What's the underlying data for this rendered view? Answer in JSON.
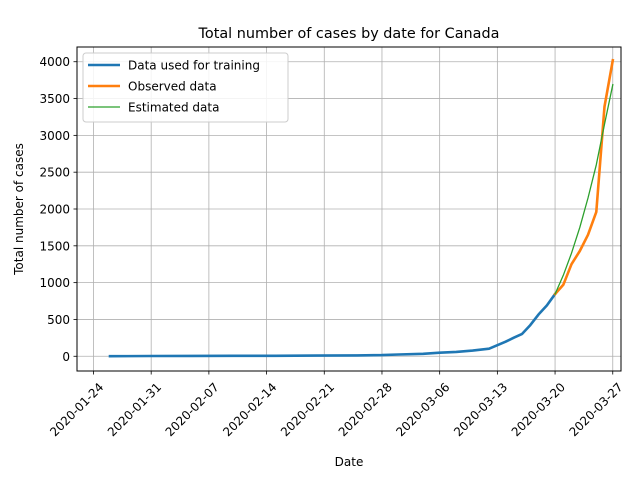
{
  "chart_data": {
    "type": "line",
    "title": "Total number of cases by date for Canada",
    "xlabel": "Date",
    "ylabel": "Total number of cases",
    "xlim": [
      "2020-01-22",
      "2020-03-28"
    ],
    "ylim": [
      -200,
      4200
    ],
    "x_ticks": [
      "2020-01-24",
      "2020-01-31",
      "2020-02-07",
      "2020-02-14",
      "2020-02-21",
      "2020-02-28",
      "2020-03-06",
      "2020-03-13",
      "2020-03-20",
      "2020-03-27"
    ],
    "y_ticks": [
      0,
      500,
      1000,
      1500,
      2000,
      2500,
      3000,
      3500,
      4000
    ],
    "grid": true,
    "legend_position": "upper-left",
    "series": [
      {
        "name": "Data used for training",
        "color": "#1f77b4",
        "x": [
          "2020-01-26",
          "2020-01-31",
          "2020-02-05",
          "2020-02-10",
          "2020-02-15",
          "2020-02-20",
          "2020-02-25",
          "2020-02-28",
          "2020-03-01",
          "2020-03-04",
          "2020-03-06",
          "2020-03-08",
          "2020-03-10",
          "2020-03-12",
          "2020-03-14",
          "2020-03-15",
          "2020-03-16",
          "2020-03-17",
          "2020-03-18",
          "2020-03-19",
          "2020-03-20"
        ],
        "values": [
          1,
          4,
          5,
          7,
          7,
          9,
          12,
          16,
          24,
          33,
          49,
          60,
          77,
          103,
          198,
          252,
          304,
          424,
          569,
          690,
          846
        ]
      },
      {
        "name": "Observed data",
        "color": "#ff7f0e",
        "x": [
          "2020-03-20",
          "2020-03-21",
          "2020-03-22",
          "2020-03-23",
          "2020-03-24",
          "2020-03-25",
          "2020-03-26",
          "2020-03-27"
        ],
        "values": [
          846,
          971,
          1250,
          1430,
          1650,
          1960,
          3390,
          4020
        ]
      },
      {
        "name": "Estimated data",
        "color": "#2ca02c",
        "x": [
          "2020-03-20",
          "2020-03-21",
          "2020-03-22",
          "2020-03-23",
          "2020-03-24",
          "2020-03-25",
          "2020-03-26",
          "2020-03-27"
        ],
        "values": [
          846,
          1100,
          1400,
          1750,
          2150,
          2600,
          3150,
          3690
        ]
      }
    ]
  }
}
